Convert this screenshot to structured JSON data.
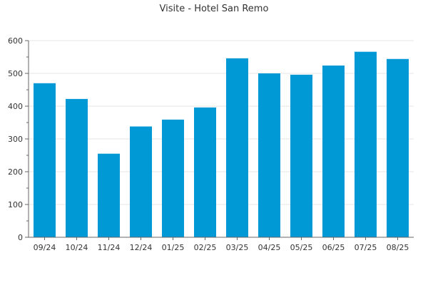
{
  "chart_data": {
    "type": "bar",
    "title": "Visite - Hotel San Remo",
    "categories": [
      "09/24",
      "10/24",
      "11/24",
      "12/24",
      "01/25",
      "02/25",
      "03/25",
      "04/25",
      "05/25",
      "06/25",
      "07/25",
      "08/25"
    ],
    "values": [
      470,
      422,
      255,
      338,
      359,
      396,
      546,
      500,
      496,
      524,
      566,
      544
    ],
    "ylim": [
      0,
      600
    ],
    "yticks": [
      0,
      100,
      200,
      300,
      400,
      500,
      600
    ],
    "grid": true,
    "bar_color": "#0099D6"
  }
}
